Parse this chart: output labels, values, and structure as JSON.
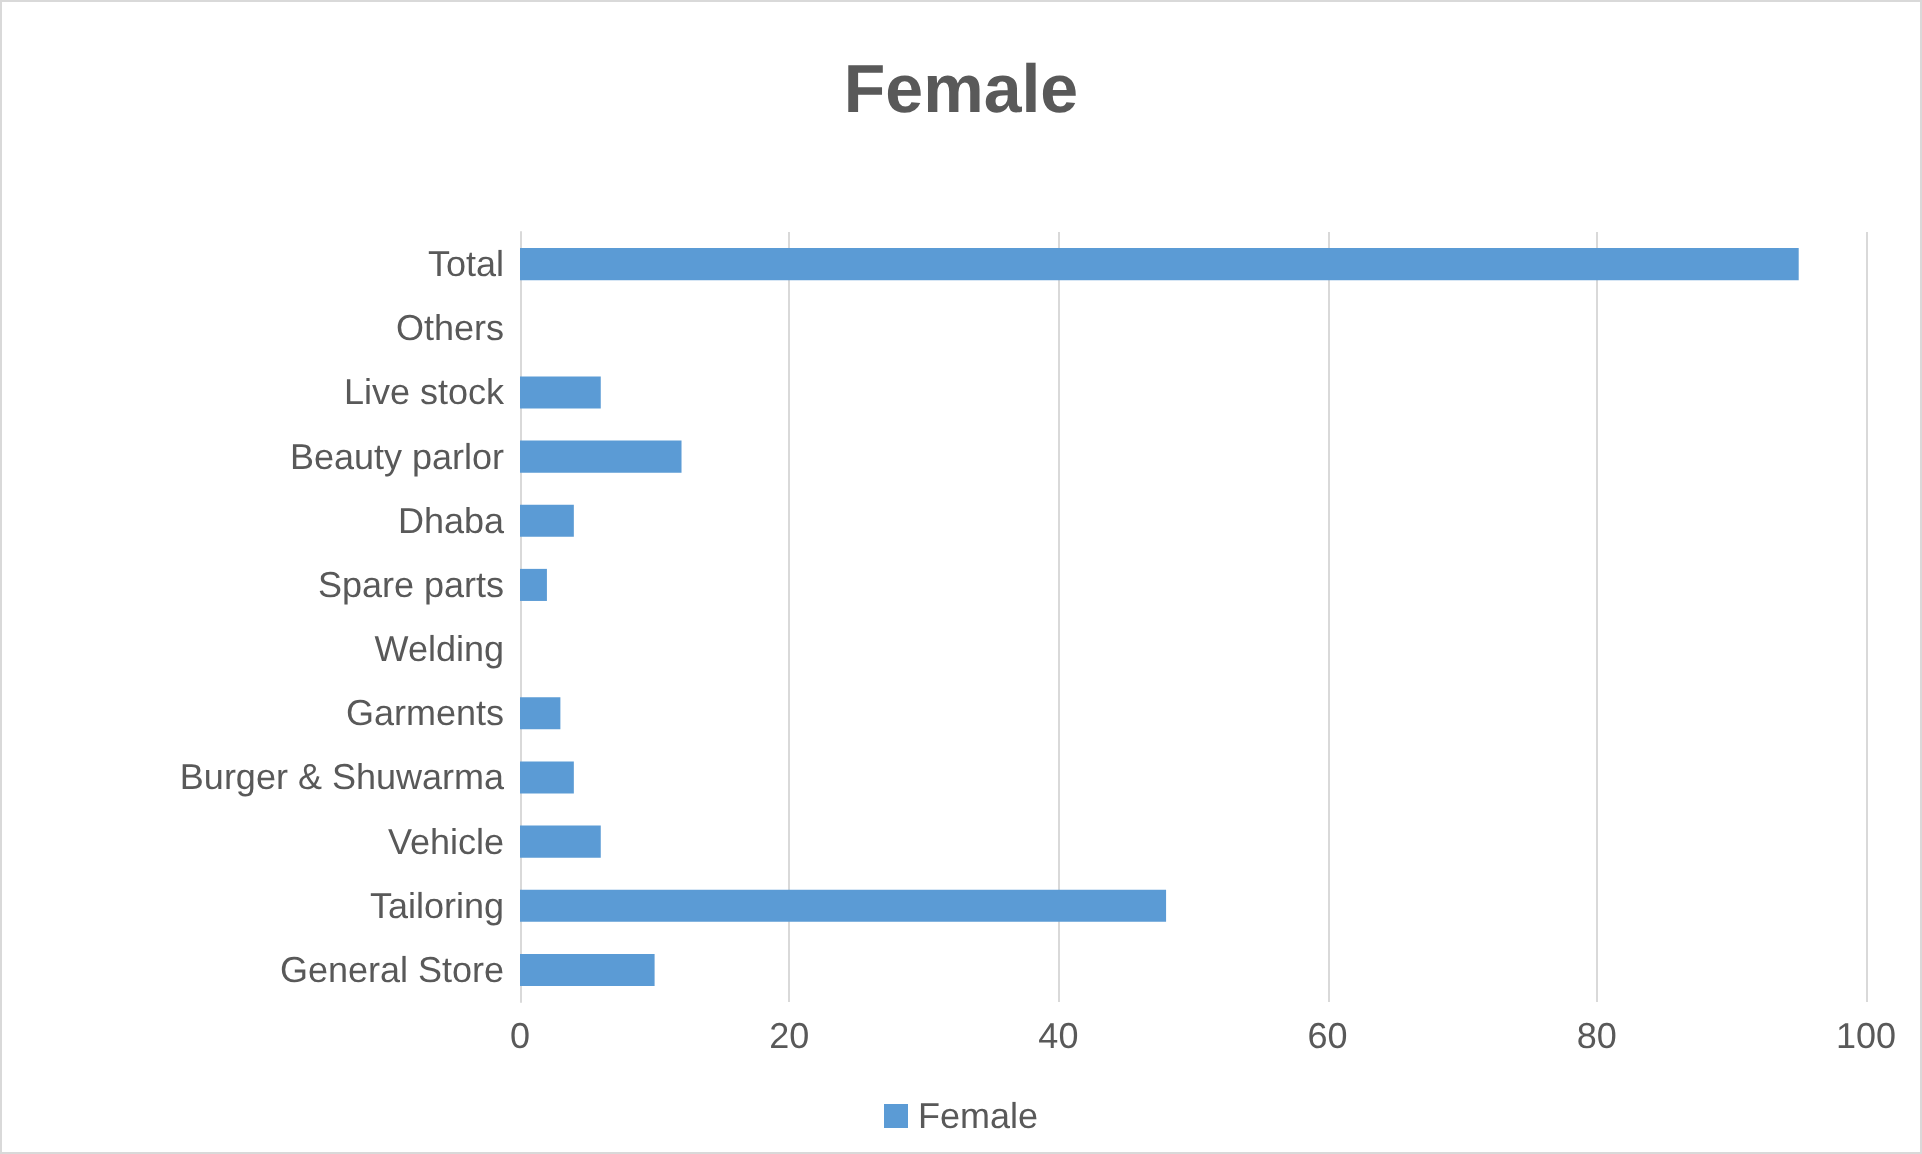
{
  "chart_data": {
    "type": "bar",
    "title": "Female",
    "orientation": "horizontal",
    "categories": [
      "Total",
      "Others",
      "Live stock",
      "Beauty parlor",
      "Dhaba",
      "Spare parts",
      "Welding",
      "Garments",
      "Burger & Shuwarma",
      "Vehicle",
      "Tailoring",
      "General Store"
    ],
    "series": [
      {
        "name": "Female",
        "color": "#5b9bd5",
        "values": [
          95,
          0,
          6,
          12,
          4,
          2,
          0,
          3,
          4,
          6,
          48,
          10
        ]
      }
    ],
    "xlim": [
      0,
      100
    ],
    "xticks": [
      0,
      20,
      40,
      60,
      80,
      100
    ],
    "grid": "x",
    "legend": "bottom"
  }
}
